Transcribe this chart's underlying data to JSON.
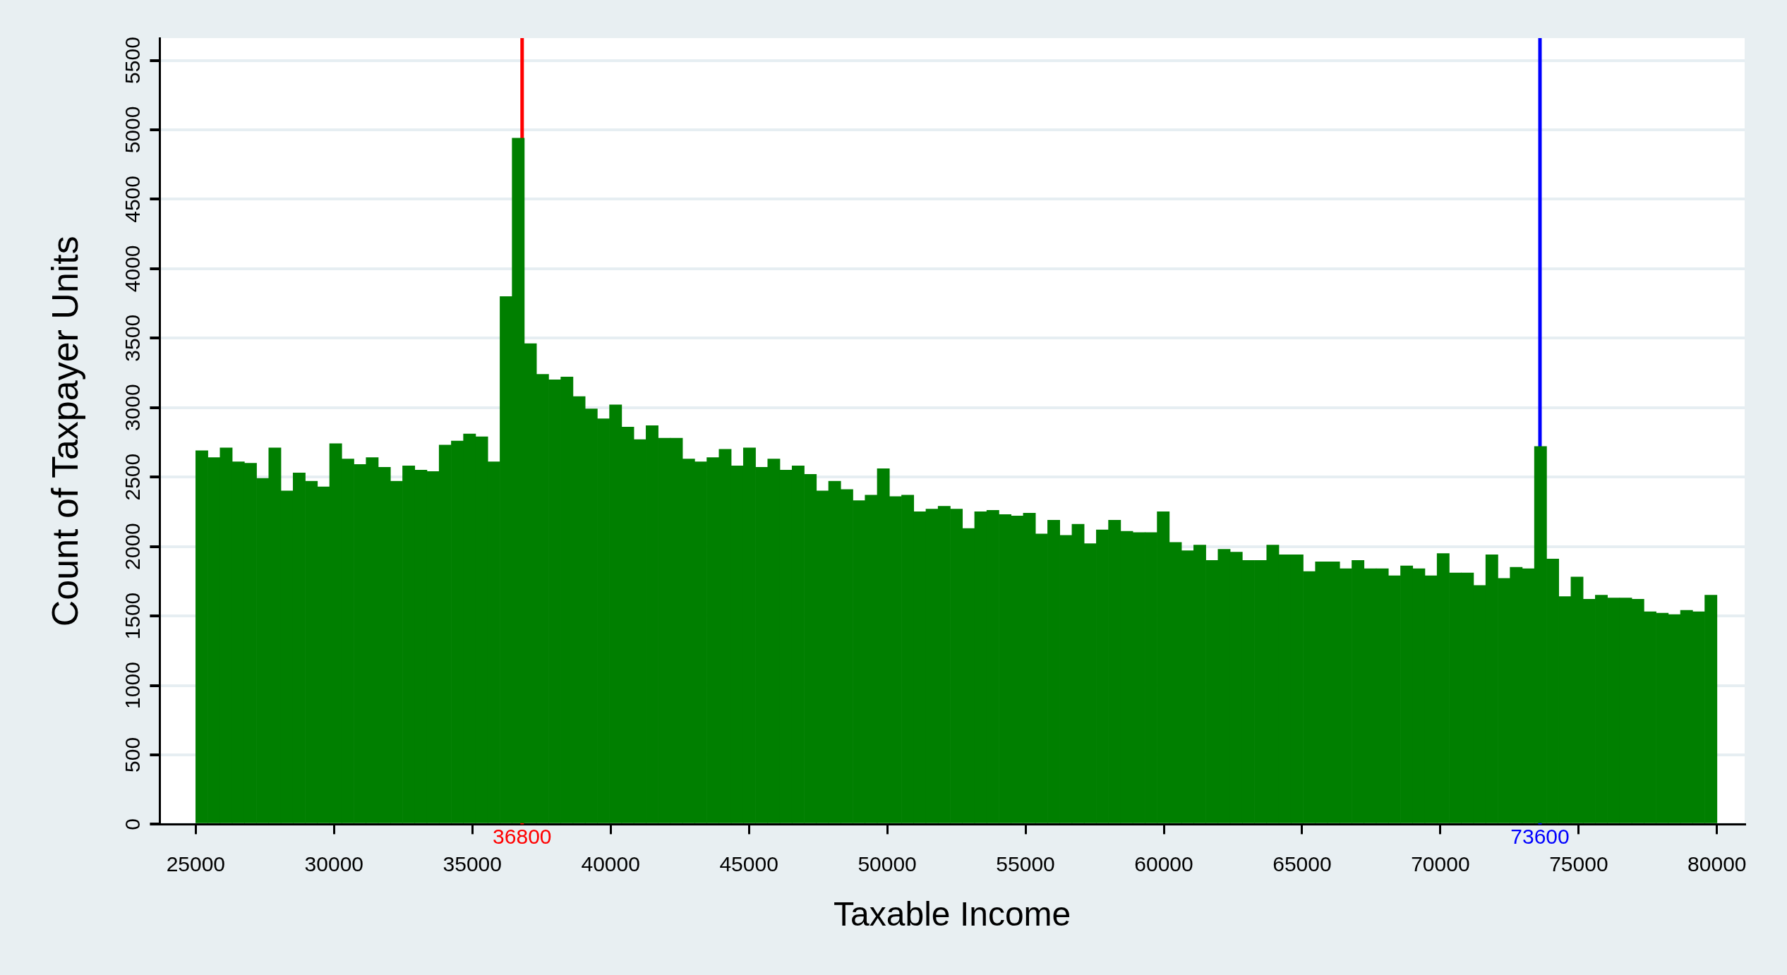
{
  "chart_data": {
    "type": "histogram",
    "xlabel": "Taxable Income",
    "ylabel": "Count of Taxpayer Units",
    "bins": [
      25000,
      25440,
      25880,
      26320,
      26760,
      27200,
      27640,
      28080,
      28520,
      28960,
      29400,
      29840,
      30280,
      30720,
      31160,
      31600,
      32040,
      32480,
      32920,
      33360,
      33800,
      34240,
      34680,
      35120,
      35560,
      36000,
      36440,
      36880,
      37320,
      37760,
      38200,
      38640,
      39080,
      39520,
      39960,
      40400,
      40840,
      41280,
      41720,
      42160,
      42600,
      43040,
      43480,
      43920,
      44360,
      44800,
      45240,
      45680,
      46120,
      46560,
      47000,
      47440,
      47880,
      48320,
      48760,
      49200,
      49640,
      50080,
      50520,
      50960,
      51400,
      51840,
      52280,
      52720,
      53160,
      53600,
      54040,
      54480,
      54920,
      55360,
      55800,
      56240,
      56680,
      57120,
      57560,
      58000,
      58440,
      58880,
      59320,
      59760,
      60200,
      60640,
      61080,
      61520,
      61960,
      62400,
      62840,
      63280,
      63720,
      64160,
      64600,
      65040,
      65480,
      65920,
      66360,
      66800,
      67240,
      67680,
      68120,
      68560,
      69000,
      69440,
      69880,
      70320,
      70760,
      71200,
      71640,
      72080,
      72520,
      72960,
      73400,
      73840,
      74280,
      74720,
      75160,
      75600,
      76040,
      76480,
      76920,
      77360,
      77800,
      78240,
      78680,
      79120,
      79560,
      80000
    ],
    "values": [
      2690,
      2640,
      2710,
      2610,
      2600,
      2490,
      2710,
      2400,
      2530,
      2470,
      2430,
      2740,
      2630,
      2590,
      2640,
      2570,
      2470,
      2580,
      2550,
      2540,
      2730,
      2760,
      2810,
      2790,
      2610,
      3800,
      4940,
      3460,
      3240,
      3200,
      3220,
      3080,
      2990,
      2920,
      3020,
      2860,
      2770,
      2870,
      2780,
      2780,
      2630,
      2610,
      2640,
      2700,
      2580,
      2710,
      2570,
      2630,
      2550,
      2580,
      2520,
      2400,
      2470,
      2410,
      2330,
      2370,
      2560,
      2360,
      2370,
      2250,
      2270,
      2290,
      2270,
      2130,
      2250,
      2260,
      2230,
      2220,
      2240,
      2090,
      2190,
      2080,
      2160,
      2020,
      2120,
      2190,
      2110,
      2100,
      2100,
      2250,
      2030,
      1970,
      2010,
      1900,
      1980,
      1960,
      1900,
      1900,
      2010,
      1940,
      1940,
      1820,
      1890,
      1890,
      1840,
      1900,
      1840,
      1840,
      1790,
      1860,
      1840,
      1790,
      1950,
      1810,
      1810,
      1720,
      1940,
      1770,
      1850,
      1840,
      2720,
      1910,
      1640,
      1780,
      1620,
      1650,
      1630,
      1630,
      1620,
      1530,
      1520,
      1510,
      1540,
      1530,
      1650
    ],
    "color": "#007f00",
    "xlim": [
      23700,
      81000
    ],
    "ylim": [
      0,
      5660
    ],
    "xticks": [
      25000,
      30000,
      35000,
      40000,
      45000,
      50000,
      55000,
      60000,
      65000,
      70000,
      75000,
      80000
    ],
    "yticks": [
      0,
      500,
      1000,
      1500,
      2000,
      2500,
      3000,
      3500,
      4000,
      4500,
      5000,
      5500
    ],
    "grid": "y",
    "ref_lines": [
      {
        "axis": "x",
        "value": 36800,
        "label": "36800",
        "color": "#ff0000"
      },
      {
        "axis": "x",
        "value": 73600,
        "label": "73600",
        "color": "#0000ff"
      }
    ]
  }
}
